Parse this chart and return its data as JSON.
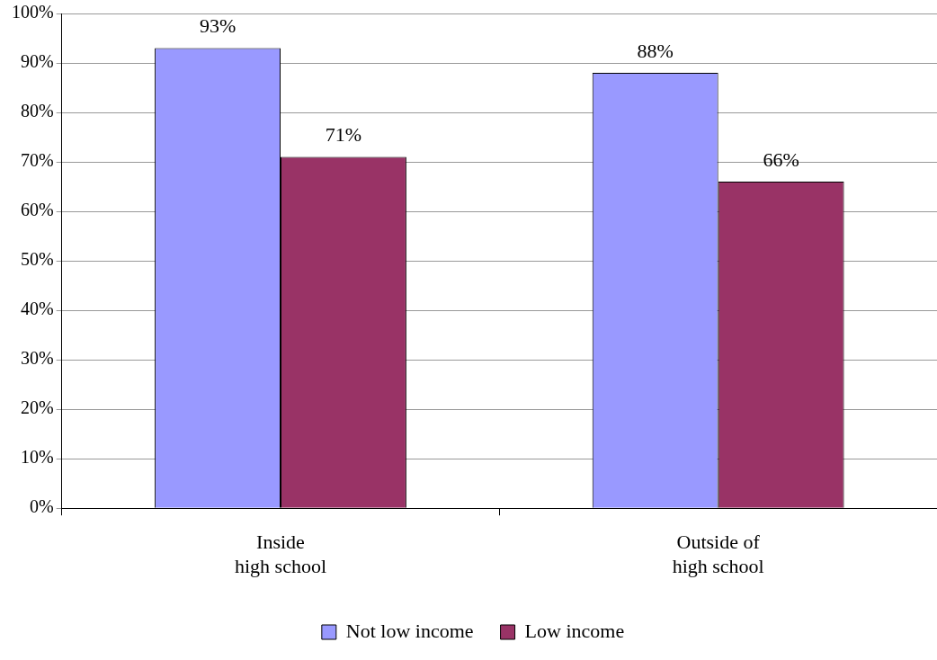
{
  "chart_data": {
    "type": "bar",
    "categories": [
      "Inside\nhigh school",
      "Outside of\nhigh school"
    ],
    "series": [
      {
        "name": "Not low income",
        "color": "#9999ff",
        "values": [
          93,
          88
        ],
        "value_labels": [
          "93%",
          "88%"
        ]
      },
      {
        "name": "Low income",
        "color": "#993366",
        "values": [
          71,
          66
        ],
        "value_labels": [
          "71%",
          "66%"
        ]
      }
    ],
    "ylim": [
      0,
      100
    ],
    "yticks": [
      {
        "value": 0,
        "label": "0%"
      },
      {
        "value": 10,
        "label": "10%"
      },
      {
        "value": 20,
        "label": "20%"
      },
      {
        "value": 30,
        "label": "30%"
      },
      {
        "value": 40,
        "label": "40%"
      },
      {
        "value": 50,
        "label": "50%"
      },
      {
        "value": 60,
        "label": "60%"
      },
      {
        "value": 70,
        "label": "70%"
      },
      {
        "value": 80,
        "label": "80%"
      },
      {
        "value": 90,
        "label": "90%"
      },
      {
        "value": 100,
        "label": "100%"
      }
    ],
    "grid": "y",
    "legend": "bottom"
  }
}
